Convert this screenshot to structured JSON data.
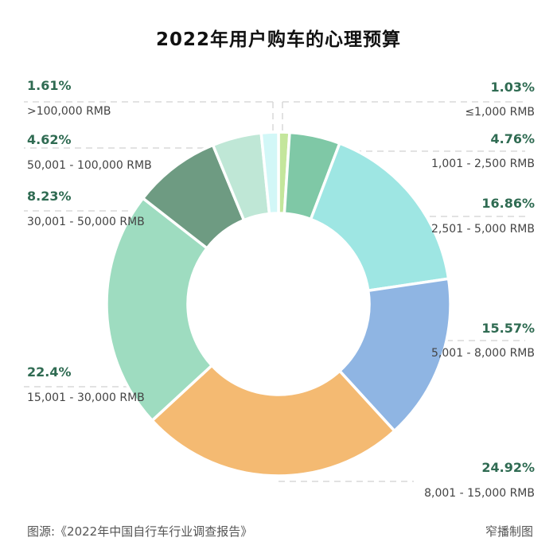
{
  "chart_data": {
    "type": "pie",
    "donut": true,
    "title": "2022年用户购车的心理预算",
    "unit": "%",
    "categories": [
      "≤1,000 RMB",
      "1,001 - 2,500 RMB",
      "2,501 - 5,000 RMB",
      "5,001 - 8,000 RMB",
      "8,001 - 15,000 RMB",
      "15,001 - 30,000 RMB",
      "30,001 - 50,000 RMB",
      "50,001 - 100,000 RMB",
      ">100,000 RMB"
    ],
    "values": [
      1.03,
      4.76,
      16.86,
      15.57,
      24.92,
      22.4,
      8.23,
      4.62,
      1.61
    ],
    "labels": [
      "1.03%",
      "4.76%",
      "16.86%",
      "15.57%",
      "24.92%",
      "22.4%",
      "8.23%",
      "4.62%",
      "1.61%"
    ],
    "colors": [
      "#c4e69c",
      "#7fc8a6",
      "#9ee6e3",
      "#8fb5e3",
      "#f4ba72",
      "#9edcc0",
      "#6e9b82",
      "#bfe7d6",
      "#d2f7f7"
    ],
    "start": "12 o'clock, clockwise",
    "legend": "none"
  },
  "footer": {
    "source": "图源:《2022年中国自行车行业调查报告》",
    "credit": "窄播制图"
  }
}
